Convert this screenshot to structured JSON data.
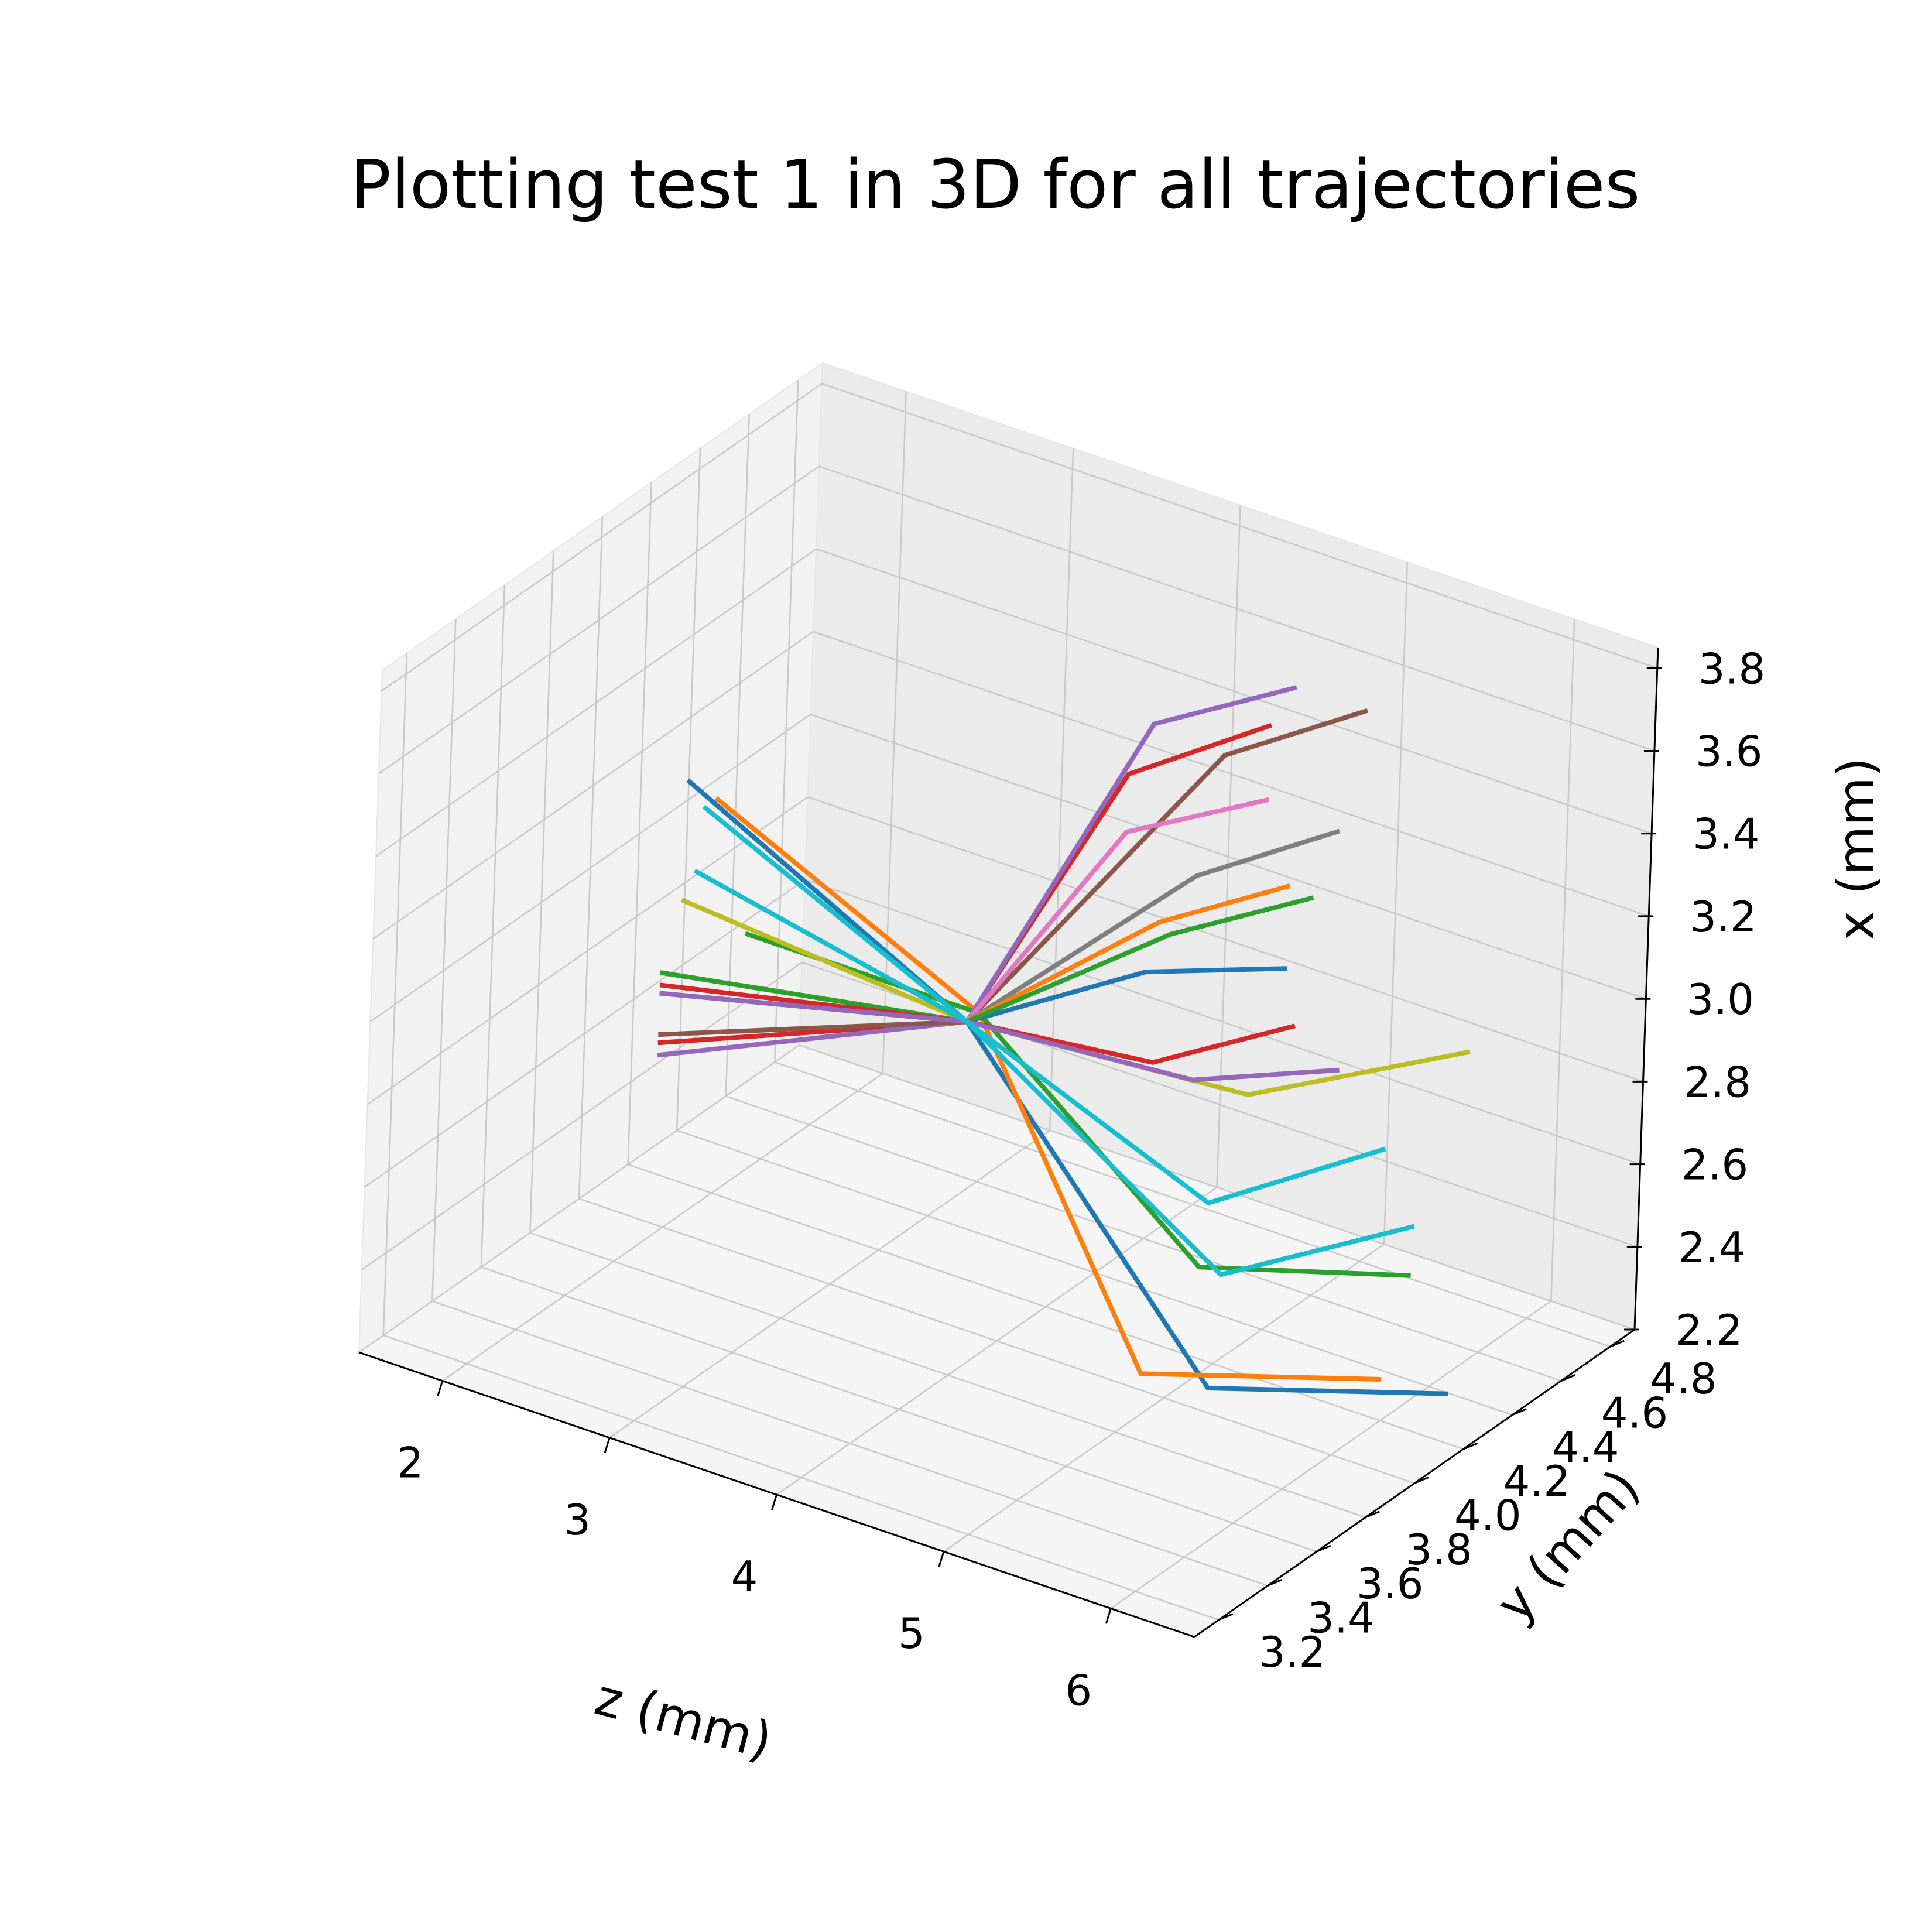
{
  "chart_data": {
    "type": "line3d",
    "title": "Plotting test 1 in 3D for all trajectories",
    "xlabel": "z (mm)",
    "ylabel": "y (mm)",
    "zlabel": "x (mm)",
    "z_axis_ticks": [
      "2",
      "3",
      "4",
      "5",
      "6"
    ],
    "y_axis_ticks": [
      "3.2",
      "3.4",
      "3.6",
      "3.8",
      "4.0",
      "4.2",
      "4.4",
      "4.6",
      "4.8"
    ],
    "x_axis_ticks": [
      "2.2",
      "2.4",
      "2.6",
      "2.8",
      "3.0",
      "3.2",
      "3.4",
      "3.6",
      "3.8"
    ],
    "z_range": [
      1.5,
      6.5
    ],
    "y_range": [
      3.1,
      4.9
    ],
    "x_range": [
      2.2,
      3.85
    ],
    "grid": true,
    "colors": [
      "#1f77b4",
      "#ff7f0e",
      "#2ca02c",
      "#d62728",
      "#9467bd",
      "#8c564b",
      "#e377c2",
      "#7f7f7f",
      "#bcbd22",
      "#17becf"
    ],
    "series": [
      {
        "color": "#1f77b4",
        "points": [
          [
            2.2,
            3.9,
            3.35
          ],
          [
            3.9,
            3.9,
            3.0
          ],
          [
            5.4,
            3.9,
            2.32
          ],
          [
            6.4,
            4.2,
            2.32
          ]
        ]
      },
      {
        "color": "#ff7f0e",
        "points": [
          [
            2.3,
            3.95,
            3.3
          ],
          [
            3.9,
            3.95,
            3.0
          ],
          [
            5.0,
            3.9,
            2.3
          ],
          [
            6.0,
            4.2,
            2.3
          ]
        ]
      },
      {
        "color": "#2ca02c",
        "points": [
          [
            2.5,
            3.95,
            3.0
          ],
          [
            3.9,
            3.95,
            3.0
          ],
          [
            4.9,
            4.2,
            2.42
          ],
          [
            5.8,
            4.45,
            2.42
          ]
        ]
      },
      {
        "color": "#d62728",
        "points": [
          [
            2.5,
            3.6,
            2.88
          ],
          [
            3.9,
            3.9,
            3.0
          ],
          [
            4.1,
            4.4,
            3.42
          ],
          [
            4.3,
            4.85,
            3.38
          ]
        ]
      },
      {
        "color": "#9467bd",
        "points": [
          [
            2.5,
            3.6,
            2.85
          ],
          [
            3.9,
            3.9,
            3.0
          ],
          [
            4.1,
            4.5,
            3.5
          ],
          [
            4.3,
            4.95,
            3.43
          ]
        ]
      },
      {
        "color": "#8c564b",
        "points": [
          [
            2.5,
            3.6,
            2.9
          ],
          [
            3.9,
            3.9,
            3.0
          ],
          [
            4.1,
            4.8,
            3.3
          ],
          [
            4.3,
            5.25,
            3.25
          ]
        ]
      },
      {
        "color": "#e377c2",
        "points": [
          [
            2.5,
            3.6,
            3.0
          ],
          [
            3.9,
            3.9,
            3.0
          ],
          [
            4.1,
            4.4,
            3.28
          ],
          [
            4.3,
            4.85,
            3.2
          ]
        ]
      },
      {
        "color": "#7f7f7f",
        "points": [
          [
            2.5,
            3.6,
            3.05
          ],
          [
            3.9,
            3.9,
            3.0
          ],
          [
            4.1,
            4.7,
            3.05
          ],
          [
            4.3,
            5.15,
            3.0
          ]
        ]
      },
      {
        "color": "#bcbd22",
        "points": [
          [
            2.4,
            3.75,
            3.15
          ],
          [
            3.9,
            3.9,
            3.0
          ],
          [
            4.8,
            4.45,
            2.72
          ],
          [
            5.4,
            4.95,
            2.7
          ]
        ]
      },
      {
        "color": "#17becf",
        "points": [
          [
            2.3,
            3.9,
            3.3
          ],
          [
            3.9,
            3.9,
            3.0
          ],
          [
            5.1,
            4.15,
            2.45
          ],
          [
            5.6,
            4.6,
            2.45
          ]
        ]
      },
      {
        "color": "#1f77b4",
        "points": [
          [
            2.5,
            3.6,
            3.0
          ],
          [
            3.9,
            3.9,
            3.0
          ],
          [
            4.1,
            4.5,
            2.9
          ],
          [
            4.3,
            4.95,
            2.75
          ]
        ]
      },
      {
        "color": "#ff7f0e",
        "points": [
          [
            2.5,
            3.6,
            3.05
          ],
          [
            3.9,
            3.9,
            3.0
          ],
          [
            4.1,
            4.55,
            3.0
          ],
          [
            4.3,
            4.95,
            2.95
          ]
        ]
      },
      {
        "color": "#2ca02c",
        "points": [
          [
            2.5,
            3.6,
            3.05
          ],
          [
            3.9,
            3.9,
            3.0
          ],
          [
            4.1,
            4.6,
            2.95
          ],
          [
            4.3,
            5.05,
            2.88
          ]
        ]
      },
      {
        "color": "#d62728",
        "points": [
          [
            2.5,
            3.6,
            3.02
          ],
          [
            3.9,
            3.9,
            3.0
          ],
          [
            4.3,
            4.4,
            2.75
          ],
          [
            4.5,
            4.85,
            2.68
          ]
        ]
      },
      {
        "color": "#9467bd",
        "points": [
          [
            2.5,
            3.6,
            3.0
          ],
          [
            3.9,
            3.9,
            3.0
          ],
          [
            4.4,
            4.5,
            2.68
          ],
          [
            4.7,
            4.9,
            2.58
          ]
        ]
      },
      {
        "color": "#17becf",
        "points": [
          [
            2.4,
            3.8,
            3.2
          ],
          [
            3.9,
            3.9,
            3.0
          ],
          [
            4.8,
            4.3,
            2.52
          ],
          [
            5.2,
            4.75,
            2.52
          ]
        ]
      }
    ]
  }
}
